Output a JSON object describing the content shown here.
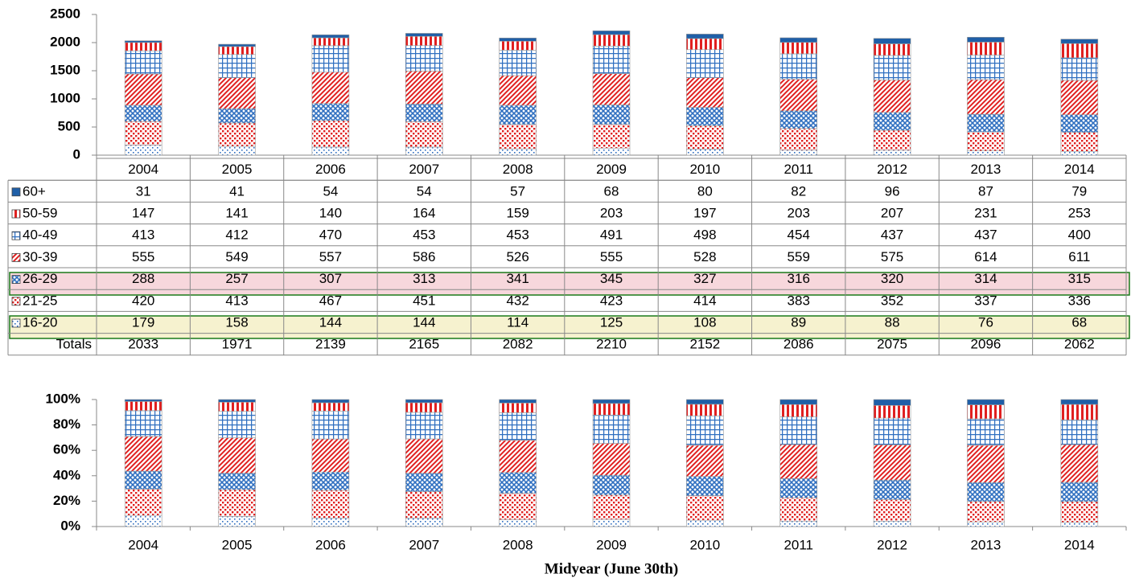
{
  "chart_data": [
    {
      "type": "bar",
      "stacking": "normal",
      "categories": [
        "2004",
        "2005",
        "2006",
        "2007",
        "2008",
        "2009",
        "2010",
        "2011",
        "2012",
        "2013",
        "2014"
      ],
      "ylim": [
        0,
        2500
      ],
      "yticks": [
        0,
        500,
        1000,
        1500,
        2000,
        2500
      ],
      "series": [
        {
          "name": "60+",
          "color": "#1f5fa8",
          "pattern": "solid",
          "values": [
            31,
            41,
            54,
            54,
            57,
            68,
            80,
            82,
            96,
            87,
            79
          ]
        },
        {
          "name": "50-59",
          "color": "#e02020",
          "pattern": "vertical",
          "values": [
            147,
            141,
            140,
            164,
            159,
            203,
            197,
            203,
            207,
            231,
            253
          ]
        },
        {
          "name": "40-49",
          "color": "#2f6fc0",
          "pattern": "grid",
          "values": [
            413,
            412,
            470,
            453,
            453,
            491,
            498,
            454,
            437,
            437,
            400
          ]
        },
        {
          "name": "30-39",
          "color": "#e02020",
          "pattern": "diagonal",
          "values": [
            555,
            549,
            557,
            586,
            526,
            555,
            528,
            559,
            575,
            614,
            611
          ]
        },
        {
          "name": "26-29",
          "color": "#2f6fc0",
          "pattern": "cross",
          "values": [
            288,
            257,
            307,
            313,
            341,
            345,
            327,
            316,
            320,
            314,
            315
          ]
        },
        {
          "name": "21-25",
          "color": "#e02020",
          "pattern": "dots",
          "values": [
            420,
            413,
            467,
            451,
            432,
            423,
            414,
            383,
            352,
            337,
            336
          ]
        },
        {
          "name": "16-20",
          "color": "#2f6fc0",
          "pattern": "dots",
          "values": [
            179,
            158,
            144,
            144,
            114,
            125,
            108,
            89,
            88,
            76,
            68
          ]
        }
      ],
      "totals_label": "Totals",
      "totals": [
        2033,
        1971,
        2139,
        2165,
        2082,
        2210,
        2152,
        2086,
        2075,
        2096,
        2062
      ]
    },
    {
      "type": "bar",
      "stacking": "percent",
      "categories": [
        "2004",
        "2005",
        "2006",
        "2007",
        "2008",
        "2009",
        "2010",
        "2011",
        "2012",
        "2013",
        "2014"
      ],
      "ylim": [
        0,
        100
      ],
      "yticks": [
        {
          "value": 0,
          "label": "0%"
        },
        {
          "value": 20,
          "label": "20%"
        },
        {
          "value": 40,
          "label": "40%"
        },
        {
          "value": 60,
          "label": "60%"
        },
        {
          "value": 80,
          "label": "80%"
        },
        {
          "value": 100,
          "label": "100%"
        }
      ],
      "xlabel": "Midyear (June 30th)"
    }
  ]
}
